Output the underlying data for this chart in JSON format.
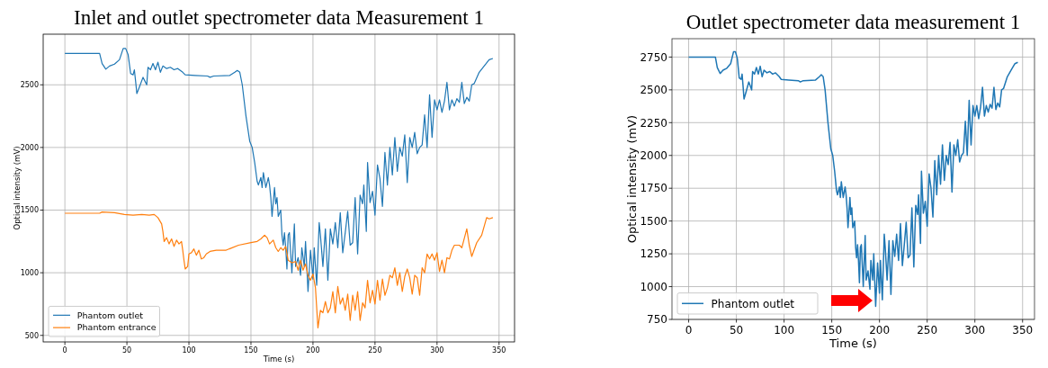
{
  "chart_data": [
    {
      "type": "line",
      "title": "Inlet and outlet spectrometer data Measurement 1",
      "xlabel": "Time (s)",
      "ylabel": "Optical intensity (mV)",
      "xlim": [
        -17.5,
        362.5
      ],
      "ylim": [
        448,
        2904
      ],
      "xticks": [
        0,
        50,
        100,
        150,
        200,
        250,
        300,
        350
      ],
      "yticks": [
        500,
        1000,
        1500,
        2000,
        2500
      ],
      "grid": true,
      "legend": "bottom left",
      "series": [
        {
          "name": "Phantom outlet",
          "color": "#1f77b4",
          "x": [
            0,
            28,
            30,
            33,
            36,
            40,
            44,
            47,
            49,
            51,
            53,
            55,
            56,
            57,
            58,
            60,
            63,
            66,
            67,
            69,
            71,
            73,
            75,
            77,
            79,
            82,
            85,
            88,
            91,
            95,
            97,
            105,
            115,
            117,
            120,
            133,
            137,
            139,
            141,
            143,
            146,
            149,
            151,
            153,
            155,
            156,
            158,
            159,
            160,
            162,
            164,
            165,
            166,
            167,
            169,
            170,
            171,
            172,
            174,
            175,
            176,
            177,
            178,
            179,
            180,
            181,
            183,
            185,
            186,
            188,
            190,
            191,
            193,
            194,
            196,
            198,
            200,
            201,
            203,
            205,
            206,
            208,
            210,
            212,
            214,
            216,
            218,
            220,
            222,
            224,
            226,
            228,
            230,
            232,
            234,
            236,
            238,
            240,
            241,
            243,
            244,
            246,
            248,
            250,
            252,
            254,
            256,
            258,
            260,
            262,
            264,
            266,
            268,
            270,
            272,
            274,
            276,
            278,
            280,
            282,
            284,
            286,
            288,
            290,
            292,
            294,
            296,
            298,
            300,
            302,
            304,
            306,
            308,
            310,
            312,
            314,
            316,
            318,
            320,
            322,
            324,
            326,
            328,
            330,
            334,
            338,
            342,
            345
          ],
          "values": [
            2750,
            2750,
            2670,
            2625,
            2650,
            2665,
            2700,
            2790,
            2790,
            2740,
            2590,
            2580,
            2620,
            2530,
            2430,
            2480,
            2560,
            2500,
            2640,
            2620,
            2670,
            2620,
            2680,
            2600,
            2650,
            2630,
            2640,
            2620,
            2630,
            2600,
            2580,
            2575,
            2570,
            2560,
            2570,
            2575,
            2600,
            2615,
            2600,
            2500,
            2250,
            2050,
            2000,
            1880,
            1730,
            1700,
            1760,
            1680,
            1800,
            1680,
            1760,
            1700,
            1600,
            1450,
            1680,
            1550,
            1600,
            1450,
            1500,
            1300,
            1220,
            1320,
            1200,
            1030,
            1300,
            1320,
            1000,
            1390,
            1050,
            1120,
            980,
            1200,
            1050,
            1250,
            850,
            1180,
            950,
            1200,
            900,
            1400,
            1300,
            1050,
            1350,
            940,
            1350,
            1230,
            1400,
            1200,
            1480,
            1160,
            1320,
            1490,
            1220,
            1240,
            1600,
            1150,
            1620,
            1550,
            1700,
            1330,
            1880,
            1560,
            1650,
            1460,
            1860,
            1750,
            1530,
            1960,
            1700,
            2000,
            1780,
            2080,
            1810,
            2000,
            1930,
            2100,
            1720,
            2080,
            2000,
            2120,
            1950,
            2000,
            2020,
            2260,
            2000,
            2420,
            2080,
            2380,
            2300,
            2380,
            2280,
            2370,
            2520,
            2300,
            2380,
            2330,
            2390,
            2360,
            2520,
            2350,
            2400,
            2370,
            2500,
            2510,
            2600,
            2650,
            2700,
            2710
          ]
        },
        {
          "name": "Phantom entrance",
          "color": "#ff7f0e",
          "x": [
            0,
            28,
            30,
            40,
            48,
            55,
            62,
            68,
            72,
            75,
            78,
            79,
            80,
            82,
            84,
            86,
            88,
            90,
            92,
            94,
            95,
            96,
            97,
            99,
            100,
            102,
            104,
            106,
            108,
            110,
            112,
            114,
            117,
            122,
            130,
            140,
            150,
            155,
            158,
            161,
            163,
            165,
            168,
            170,
            172,
            174,
            176,
            178,
            180,
            183,
            186,
            188,
            190,
            192,
            194,
            196,
            198,
            200,
            202,
            204,
            206,
            208,
            210,
            212,
            214,
            216,
            218,
            220,
            222,
            224,
            226,
            228,
            230,
            232,
            234,
            236,
            238,
            240,
            242,
            244,
            246,
            248,
            250,
            252,
            254,
            256,
            258,
            260,
            262,
            264,
            266,
            268,
            270,
            272,
            274,
            276,
            278,
            280,
            282,
            284,
            286,
            288,
            290,
            292,
            294,
            296,
            298,
            300,
            302,
            304,
            306,
            308,
            310,
            312,
            314,
            318,
            320,
            324,
            326,
            328,
            332,
            336,
            338,
            340,
            342,
            345
          ],
          "values": [
            1475,
            1475,
            1485,
            1480,
            1465,
            1460,
            1465,
            1460,
            1465,
            1440,
            1390,
            1330,
            1250,
            1280,
            1230,
            1270,
            1210,
            1260,
            1230,
            1250,
            1180,
            1100,
            1030,
            1050,
            1150,
            1160,
            1190,
            1140,
            1180,
            1110,
            1120,
            1150,
            1170,
            1180,
            1180,
            1220,
            1240,
            1250,
            1270,
            1300,
            1280,
            1230,
            1260,
            1200,
            1170,
            1200,
            1180,
            1210,
            1100,
            1080,
            1090,
            1020,
            1100,
            1020,
            1070,
            980,
            940,
            990,
            880,
            560,
            700,
            680,
            770,
            680,
            720,
            850,
            680,
            890,
            750,
            800,
            700,
            830,
            620,
            820,
            700,
            850,
            620,
            760,
            720,
            940,
            760,
            860,
            750,
            940,
            780,
            950,
            820,
            880,
            980,
            960,
            1040,
            900,
            1000,
            850,
            970,
            1030,
            960,
            830,
            980,
            960,
            820,
            1040,
            1000,
            1150,
            1110,
            1150,
            1100,
            1160,
            1010,
            1100,
            1000,
            1120,
            1110,
            1180,
            1220,
            1220,
            1200,
            1350,
            1220,
            1130,
            1240,
            1300,
            1370,
            1440,
            1430,
            1440
          ]
        }
      ]
    },
    {
      "type": "line",
      "title": "Outlet spectrometer data measurement 1",
      "xlabel": "Time (s)",
      "ylabel": "Optical intensity (mV)",
      "xlim": [
        -17.5,
        362.5
      ],
      "ylim": [
        750,
        2890
      ],
      "xticks": [
        0,
        50,
        100,
        150,
        200,
        250,
        300,
        350
      ],
      "yticks": [
        750,
        1000,
        1250,
        1500,
        1750,
        2000,
        2250,
        2500,
        2750
      ],
      "grid": true,
      "legend": "bottom left",
      "series": [
        {
          "name": "Phantom outlet",
          "color": "#1f77b4",
          "x": [
            0,
            28,
            30,
            33,
            36,
            40,
            44,
            47,
            49,
            51,
            53,
            55,
            56,
            57,
            58,
            60,
            63,
            66,
            67,
            69,
            71,
            73,
            75,
            77,
            79,
            82,
            85,
            88,
            91,
            95,
            97,
            105,
            115,
            117,
            120,
            133,
            137,
            139,
            141,
            143,
            146,
            149,
            151,
            153,
            155,
            156,
            158,
            159,
            160,
            162,
            164,
            165,
            166,
            167,
            169,
            170,
            171,
            172,
            174,
            175,
            176,
            177,
            178,
            179,
            180,
            181,
            183,
            185,
            186,
            188,
            190,
            191,
            193,
            194,
            196,
            198,
            200,
            201,
            203,
            205,
            206,
            208,
            210,
            212,
            214,
            216,
            218,
            220,
            222,
            224,
            226,
            228,
            230,
            232,
            234,
            236,
            238,
            240,
            241,
            243,
            244,
            246,
            248,
            250,
            252,
            254,
            256,
            258,
            260,
            262,
            264,
            266,
            268,
            270,
            272,
            274,
            276,
            278,
            280,
            282,
            284,
            286,
            288,
            290,
            292,
            294,
            296,
            298,
            300,
            302,
            304,
            306,
            308,
            310,
            312,
            314,
            316,
            318,
            320,
            322,
            324,
            326,
            328,
            330,
            334,
            338,
            342,
            345
          ],
          "values": [
            2750,
            2750,
            2670,
            2625,
            2650,
            2665,
            2700,
            2790,
            2790,
            2740,
            2590,
            2580,
            2620,
            2530,
            2430,
            2480,
            2560,
            2500,
            2640,
            2620,
            2670,
            2620,
            2680,
            2600,
            2650,
            2630,
            2640,
            2620,
            2630,
            2600,
            2580,
            2575,
            2570,
            2560,
            2570,
            2575,
            2600,
            2615,
            2600,
            2500,
            2250,
            2050,
            2000,
            1880,
            1730,
            1700,
            1760,
            1680,
            1800,
            1680,
            1760,
            1700,
            1600,
            1450,
            1680,
            1550,
            1600,
            1450,
            1500,
            1300,
            1220,
            1320,
            1200,
            1030,
            1300,
            1320,
            1000,
            1390,
            1050,
            1120,
            980,
            1200,
            1050,
            1250,
            850,
            1180,
            950,
            1200,
            900,
            1400,
            1300,
            1050,
            1350,
            940,
            1350,
            1230,
            1400,
            1200,
            1480,
            1160,
            1320,
            1490,
            1220,
            1240,
            1600,
            1150,
            1620,
            1550,
            1700,
            1330,
            1880,
            1560,
            1650,
            1460,
            1860,
            1750,
            1530,
            1960,
            1700,
            2000,
            1780,
            2080,
            1810,
            2000,
            1930,
            2100,
            1720,
            2080,
            2000,
            2120,
            1950,
            2000,
            2020,
            2260,
            2000,
            2420,
            2080,
            2380,
            2300,
            2380,
            2280,
            2370,
            2520,
            2300,
            2380,
            2330,
            2390,
            2360,
            2520,
            2350,
            2400,
            2370,
            2500,
            2510,
            2600,
            2650,
            2700,
            2710
          ]
        }
      ]
    }
  ]
}
